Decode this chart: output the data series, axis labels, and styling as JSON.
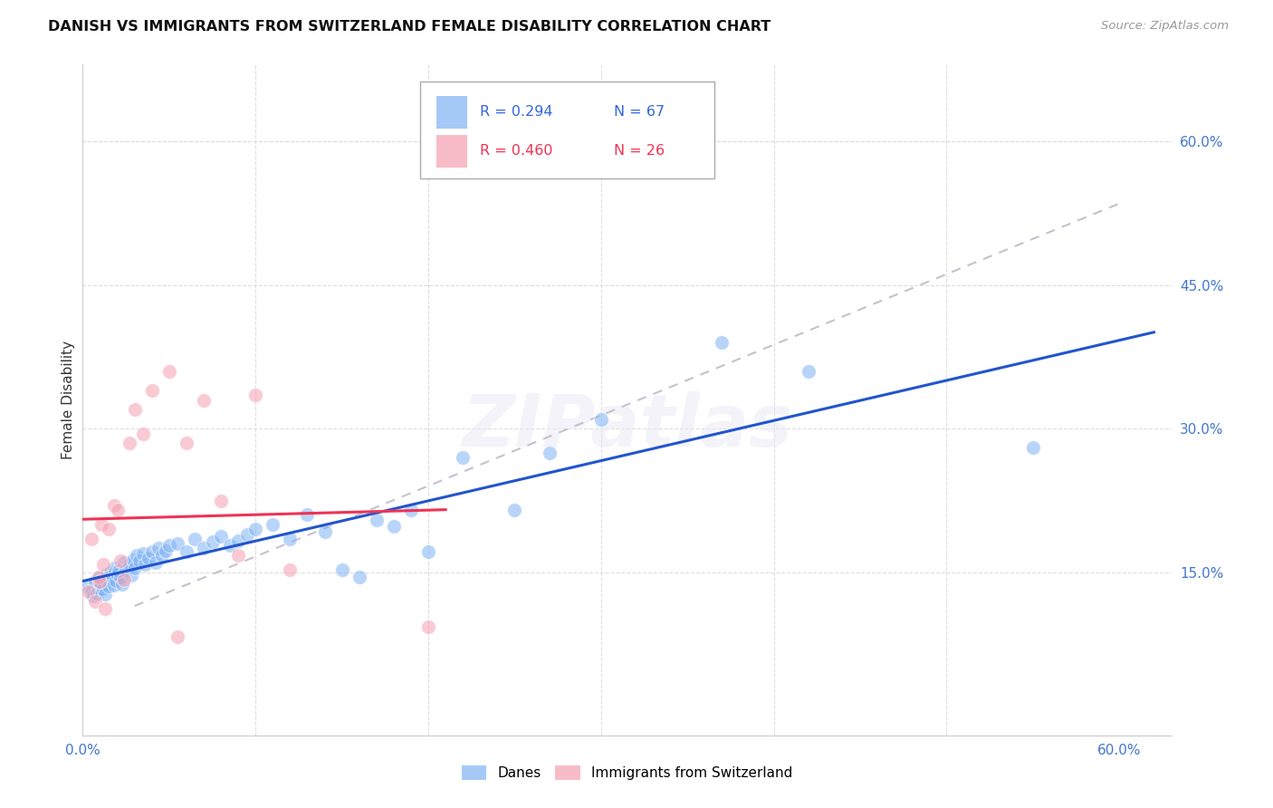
{
  "title": "DANISH VS IMMIGRANTS FROM SWITZERLAND FEMALE DISABILITY CORRELATION CHART",
  "source": "Source: ZipAtlas.com",
  "ylabel": "Female Disability",
  "xlim": [
    0.0,
    0.63
  ],
  "ylim": [
    -0.02,
    0.68
  ],
  "ytick_vals": [
    0.0,
    0.15,
    0.3,
    0.45,
    0.6
  ],
  "ytick_labels": [
    "",
    "15.0%",
    "30.0%",
    "45.0%",
    "60.0%"
  ],
  "xtick_vals": [
    0.0,
    0.1,
    0.2,
    0.3,
    0.4,
    0.5,
    0.6
  ],
  "xtick_labels": [
    "0.0%",
    "",
    "",
    "",
    "",
    "",
    "60.0%"
  ],
  "blue_color": "#7FB3F5",
  "pink_color": "#F5A0B0",
  "trend_blue_color": "#2255CC",
  "trend_pink_color": "#EE3355",
  "trend_gray_color": "#C8C0CC",
  "watermark": "ZIPatlas",
  "legend_r1": "R = 0.294",
  "legend_n1": "N = 67",
  "legend_r2": "R = 0.460",
  "legend_n2": "N = 26",
  "danes_x": [
    0.003,
    0.005,
    0.006,
    0.007,
    0.008,
    0.009,
    0.01,
    0.01,
    0.011,
    0.012,
    0.013,
    0.014,
    0.014,
    0.015,
    0.016,
    0.017,
    0.018,
    0.018,
    0.019,
    0.02,
    0.021,
    0.022,
    0.023,
    0.024,
    0.025,
    0.027,
    0.028,
    0.029,
    0.03,
    0.031,
    0.033,
    0.035,
    0.036,
    0.038,
    0.04,
    0.042,
    0.044,
    0.046,
    0.048,
    0.05,
    0.055,
    0.06,
    0.065,
    0.07,
    0.075,
    0.08,
    0.085,
    0.09,
    0.095,
    0.1,
    0.11,
    0.12,
    0.13,
    0.14,
    0.15,
    0.16,
    0.17,
    0.18,
    0.19,
    0.2,
    0.22,
    0.25,
    0.27,
    0.3,
    0.37,
    0.42,
    0.55
  ],
  "danes_y": [
    0.135,
    0.13,
    0.125,
    0.14,
    0.128,
    0.132,
    0.14,
    0.145,
    0.138,
    0.133,
    0.127,
    0.142,
    0.148,
    0.136,
    0.15,
    0.143,
    0.137,
    0.155,
    0.141,
    0.148,
    0.152,
    0.145,
    0.138,
    0.16,
    0.153,
    0.158,
    0.147,
    0.163,
    0.155,
    0.168,
    0.162,
    0.17,
    0.158,
    0.165,
    0.172,
    0.16,
    0.175,
    0.168,
    0.173,
    0.178,
    0.18,
    0.172,
    0.185,
    0.175,
    0.182,
    0.188,
    0.178,
    0.183,
    0.19,
    0.195,
    0.2,
    0.185,
    0.21,
    0.192,
    0.153,
    0.145,
    0.205,
    0.198,
    0.215,
    0.172,
    0.27,
    0.215,
    0.275,
    0.31,
    0.39,
    0.36,
    0.28
  ],
  "swiss_x": [
    0.003,
    0.005,
    0.007,
    0.009,
    0.01,
    0.011,
    0.012,
    0.013,
    0.015,
    0.018,
    0.02,
    0.022,
    0.024,
    0.027,
    0.03,
    0.035,
    0.04,
    0.05,
    0.055,
    0.06,
    0.07,
    0.08,
    0.09,
    0.1,
    0.12,
    0.2
  ],
  "swiss_y": [
    0.13,
    0.185,
    0.12,
    0.145,
    0.14,
    0.2,
    0.158,
    0.112,
    0.195,
    0.22,
    0.215,
    0.162,
    0.142,
    0.285,
    0.32,
    0.295,
    0.34,
    0.36,
    0.083,
    0.285,
    0.33,
    0.225,
    0.168,
    0.335,
    0.153,
    0.093
  ],
  "gray_line_x": [
    0.03,
    0.6
  ],
  "gray_line_y": [
    0.115,
    0.535
  ]
}
